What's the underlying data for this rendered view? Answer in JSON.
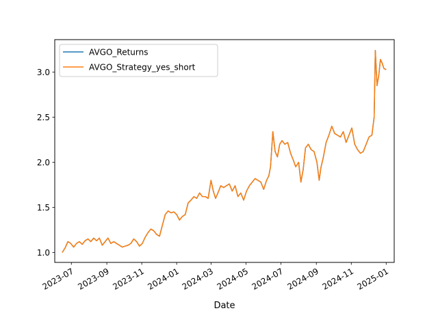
{
  "chart_data": {
    "type": "line",
    "title": "",
    "xlabel": "Date",
    "ylabel": "",
    "grid": false,
    "legend_position": "upper-left",
    "x_ticks": [
      {
        "date": "2023-07-01",
        "label": "2023-07"
      },
      {
        "date": "2023-09-01",
        "label": "2023-09"
      },
      {
        "date": "2023-11-01",
        "label": "2023-11"
      },
      {
        "date": "2024-01-01",
        "label": "2024-01"
      },
      {
        "date": "2024-03-01",
        "label": "2024-03"
      },
      {
        "date": "2024-05-01",
        "label": "2024-05"
      },
      {
        "date": "2024-07-01",
        "label": "2024-07"
      },
      {
        "date": "2024-09-01",
        "label": "2024-09"
      },
      {
        "date": "2024-11-01",
        "label": "2024-11"
      },
      {
        "date": "2025-01-01",
        "label": "2025-01"
      }
    ],
    "y_ticks": [
      {
        "value": 1.0,
        "label": "1.0"
      },
      {
        "value": 1.5,
        "label": "1.5"
      },
      {
        "value": 2.0,
        "label": "2.0"
      },
      {
        "value": 2.5,
        "label": "2.5"
      },
      {
        "value": 3.0,
        "label": "3.0"
      }
    ],
    "xlim": [
      "2023-06-02",
      "2025-01-15"
    ],
    "ylim": [
      0.89,
      3.36
    ],
    "series": [
      {
        "name": "AVGO_Returns",
        "color": "#1f77b4",
        "x": [
          "2023-06-15",
          "2023-06-20",
          "2023-06-25",
          "2023-06-30",
          "2023-07-05",
          "2023-07-10",
          "2023-07-15",
          "2023-07-20",
          "2023-07-25",
          "2023-07-30",
          "2023-08-04",
          "2023-08-09",
          "2023-08-14",
          "2023-08-19",
          "2023-08-24",
          "2023-08-29",
          "2023-09-03",
          "2023-09-08",
          "2023-09-13",
          "2023-09-18",
          "2023-09-23",
          "2023-09-28",
          "2023-10-03",
          "2023-10-08",
          "2023-10-13",
          "2023-10-18",
          "2023-10-23",
          "2023-10-28",
          "2023-11-02",
          "2023-11-07",
          "2023-11-12",
          "2023-11-17",
          "2023-11-22",
          "2023-11-27",
          "2023-12-02",
          "2023-12-07",
          "2023-12-12",
          "2023-12-17",
          "2023-12-22",
          "2023-12-27",
          "2024-01-01",
          "2024-01-06",
          "2024-01-11",
          "2024-01-16",
          "2024-01-21",
          "2024-01-26",
          "2024-01-31",
          "2024-02-05",
          "2024-02-10",
          "2024-02-15",
          "2024-02-20",
          "2024-02-25",
          "2024-03-01",
          "2024-03-05",
          "2024-03-09",
          "2024-03-13",
          "2024-03-18",
          "2024-03-23",
          "2024-03-28",
          "2024-04-02",
          "2024-04-07",
          "2024-04-12",
          "2024-04-17",
          "2024-04-22",
          "2024-04-27",
          "2024-05-02",
          "2024-05-07",
          "2024-05-12",
          "2024-05-17",
          "2024-05-22",
          "2024-05-27",
          "2024-06-01",
          "2024-06-06",
          "2024-06-10",
          "2024-06-13",
          "2024-06-17",
          "2024-06-21",
          "2024-06-25",
          "2024-06-29",
          "2024-07-03",
          "2024-07-08",
          "2024-07-13",
          "2024-07-18",
          "2024-07-23",
          "2024-07-27",
          "2024-08-01",
          "2024-08-05",
          "2024-08-09",
          "2024-08-13",
          "2024-08-18",
          "2024-08-23",
          "2024-08-28",
          "2024-09-02",
          "2024-09-06",
          "2024-09-09",
          "2024-09-13",
          "2024-09-18",
          "2024-09-23",
          "2024-09-28",
          "2024-10-03",
          "2024-10-08",
          "2024-10-13",
          "2024-10-18",
          "2024-10-23",
          "2024-10-28",
          "2024-11-02",
          "2024-11-07",
          "2024-11-12",
          "2024-11-17",
          "2024-11-22",
          "2024-11-27",
          "2024-12-02",
          "2024-12-07",
          "2024-12-11",
          "2024-12-13",
          "2024-12-16",
          "2024-12-19",
          "2024-12-22",
          "2024-12-25",
          "2024-12-28",
          "2024-12-31",
          "2025-01-01"
        ],
        "values": [
          1.0,
          1.05,
          1.12,
          1.1,
          1.06,
          1.1,
          1.12,
          1.09,
          1.13,
          1.15,
          1.12,
          1.16,
          1.13,
          1.16,
          1.08,
          1.12,
          1.16,
          1.1,
          1.12,
          1.1,
          1.08,
          1.06,
          1.07,
          1.08,
          1.1,
          1.15,
          1.12,
          1.07,
          1.1,
          1.17,
          1.22,
          1.26,
          1.24,
          1.2,
          1.18,
          1.3,
          1.42,
          1.46,
          1.44,
          1.45,
          1.42,
          1.36,
          1.4,
          1.42,
          1.55,
          1.58,
          1.62,
          1.6,
          1.66,
          1.62,
          1.62,
          1.6,
          1.8,
          1.68,
          1.6,
          1.66,
          1.74,
          1.72,
          1.74,
          1.76,
          1.68,
          1.74,
          1.62,
          1.66,
          1.58,
          1.68,
          1.74,
          1.78,
          1.82,
          1.8,
          1.78,
          1.7,
          1.8,
          1.85,
          1.95,
          2.34,
          2.12,
          2.06,
          2.2,
          2.24,
          2.2,
          2.22,
          2.1,
          2.02,
          1.95,
          2.0,
          1.78,
          1.92,
          2.16,
          2.2,
          2.14,
          2.12,
          2.0,
          1.8,
          1.94,
          2.05,
          2.22,
          2.3,
          2.4,
          2.32,
          2.3,
          2.28,
          2.34,
          2.22,
          2.3,
          2.38,
          2.2,
          2.14,
          2.1,
          2.12,
          2.2,
          2.28,
          2.3,
          2.5,
          3.24,
          2.85,
          2.96,
          3.14,
          3.1,
          3.04,
          3.03,
          3.03
        ]
      },
      {
        "name": "AVGO_Strategy_yes_short",
        "color": "#ff7f0e",
        "x": [
          "2023-06-15",
          "2023-06-20",
          "2023-06-25",
          "2023-06-30",
          "2023-07-05",
          "2023-07-10",
          "2023-07-15",
          "2023-07-20",
          "2023-07-25",
          "2023-07-30",
          "2023-08-04",
          "2023-08-09",
          "2023-08-14",
          "2023-08-19",
          "2023-08-24",
          "2023-08-29",
          "2023-09-03",
          "2023-09-08",
          "2023-09-13",
          "2023-09-18",
          "2023-09-23",
          "2023-09-28",
          "2023-10-03",
          "2023-10-08",
          "2023-10-13",
          "2023-10-18",
          "2023-10-23",
          "2023-10-28",
          "2023-11-02",
          "2023-11-07",
          "2023-11-12",
          "2023-11-17",
          "2023-11-22",
          "2023-11-27",
          "2023-12-02",
          "2023-12-07",
          "2023-12-12",
          "2023-12-17",
          "2023-12-22",
          "2023-12-27",
          "2024-01-01",
          "2024-01-06",
          "2024-01-11",
          "2024-01-16",
          "2024-01-21",
          "2024-01-26",
          "2024-01-31",
          "2024-02-05",
          "2024-02-10",
          "2024-02-15",
          "2024-02-20",
          "2024-02-25",
          "2024-03-01",
          "2024-03-05",
          "2024-03-09",
          "2024-03-13",
          "2024-03-18",
          "2024-03-23",
          "2024-03-28",
          "2024-04-02",
          "2024-04-07",
          "2024-04-12",
          "2024-04-17",
          "2024-04-22",
          "2024-04-27",
          "2024-05-02",
          "2024-05-07",
          "2024-05-12",
          "2024-05-17",
          "2024-05-22",
          "2024-05-27",
          "2024-06-01",
          "2024-06-06",
          "2024-06-10",
          "2024-06-13",
          "2024-06-17",
          "2024-06-21",
          "2024-06-25",
          "2024-06-29",
          "2024-07-03",
          "2024-07-08",
          "2024-07-13",
          "2024-07-18",
          "2024-07-23",
          "2024-07-27",
          "2024-08-01",
          "2024-08-05",
          "2024-08-09",
          "2024-08-13",
          "2024-08-18",
          "2024-08-23",
          "2024-08-28",
          "2024-09-02",
          "2024-09-06",
          "2024-09-09",
          "2024-09-13",
          "2024-09-18",
          "2024-09-23",
          "2024-09-28",
          "2024-10-03",
          "2024-10-08",
          "2024-10-13",
          "2024-10-18",
          "2024-10-23",
          "2024-10-28",
          "2024-11-02",
          "2024-11-07",
          "2024-11-12",
          "2024-11-17",
          "2024-11-22",
          "2024-11-27",
          "2024-12-02",
          "2024-12-07",
          "2024-12-11",
          "2024-12-13",
          "2024-12-16",
          "2024-12-19",
          "2024-12-22",
          "2024-12-25",
          "2024-12-28",
          "2024-12-31",
          "2025-01-01"
        ],
        "values": [
          1.0,
          1.05,
          1.12,
          1.1,
          1.06,
          1.1,
          1.12,
          1.09,
          1.13,
          1.15,
          1.12,
          1.16,
          1.13,
          1.16,
          1.08,
          1.12,
          1.16,
          1.1,
          1.12,
          1.1,
          1.08,
          1.06,
          1.07,
          1.08,
          1.1,
          1.15,
          1.12,
          1.07,
          1.1,
          1.17,
          1.22,
          1.26,
          1.24,
          1.2,
          1.18,
          1.3,
          1.42,
          1.46,
          1.44,
          1.45,
          1.42,
          1.36,
          1.4,
          1.42,
          1.55,
          1.58,
          1.62,
          1.6,
          1.66,
          1.62,
          1.62,
          1.6,
          1.8,
          1.68,
          1.6,
          1.66,
          1.74,
          1.72,
          1.74,
          1.76,
          1.68,
          1.74,
          1.62,
          1.66,
          1.58,
          1.68,
          1.74,
          1.78,
          1.82,
          1.8,
          1.78,
          1.7,
          1.8,
          1.85,
          1.95,
          2.34,
          2.12,
          2.06,
          2.2,
          2.24,
          2.2,
          2.22,
          2.1,
          2.02,
          1.95,
          2.0,
          1.78,
          1.92,
          2.16,
          2.2,
          2.14,
          2.12,
          2.0,
          1.8,
          1.94,
          2.05,
          2.22,
          2.3,
          2.4,
          2.32,
          2.3,
          2.28,
          2.34,
          2.22,
          2.3,
          2.38,
          2.2,
          2.14,
          2.1,
          2.12,
          2.2,
          2.28,
          2.3,
          2.5,
          3.24,
          2.85,
          2.96,
          3.14,
          3.1,
          3.04,
          3.03,
          3.03
        ]
      }
    ]
  }
}
